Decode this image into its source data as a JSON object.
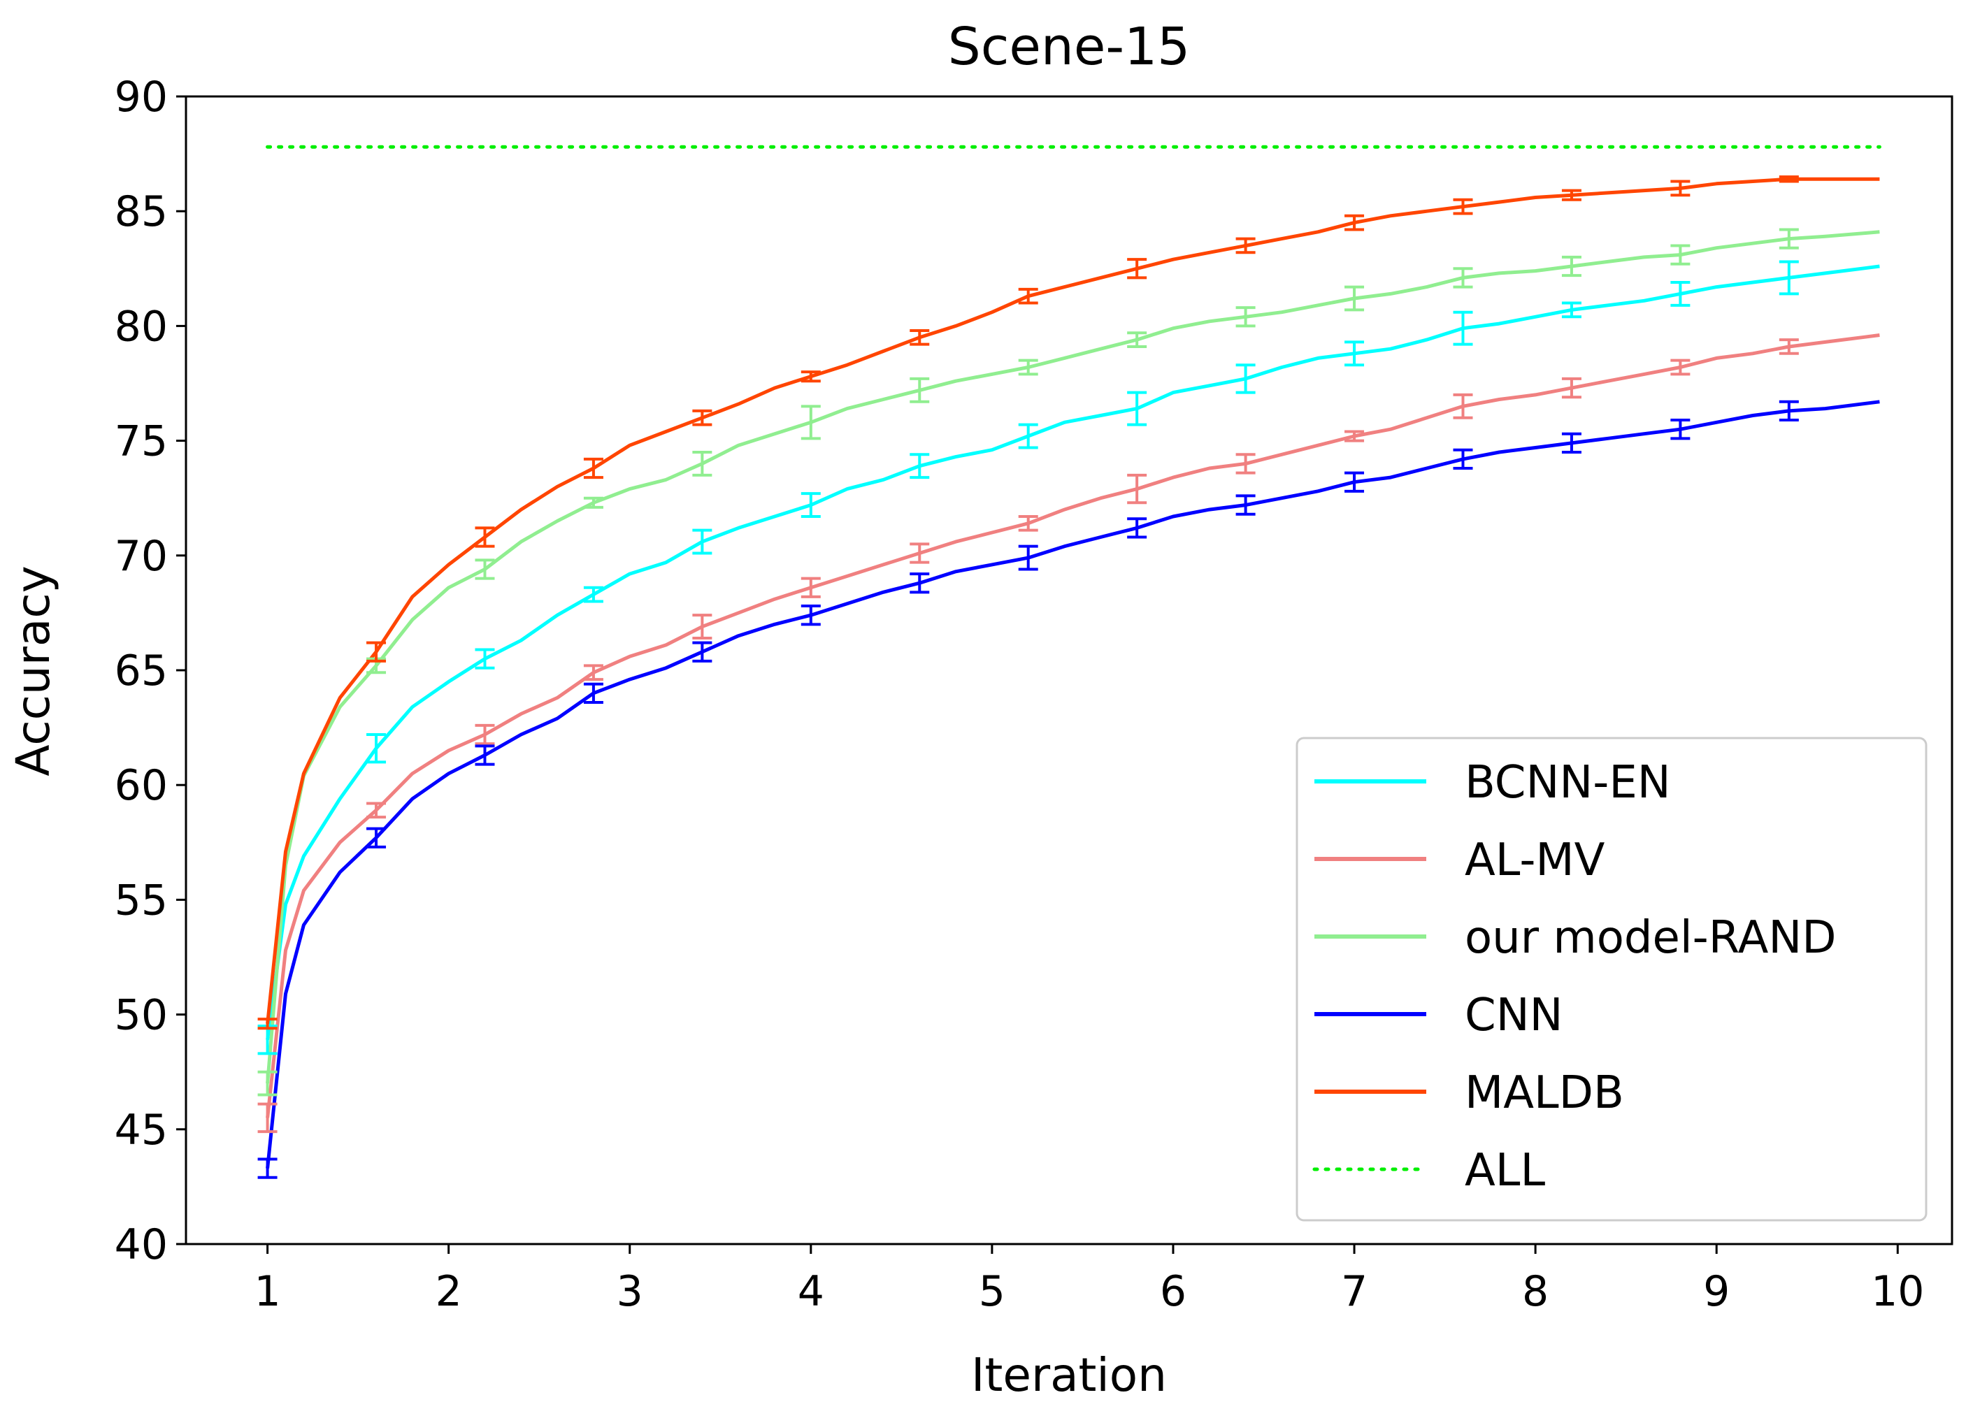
{
  "chart_data": {
    "type": "line",
    "title": "Scene-15",
    "xlabel": "Iteration",
    "ylabel": "Accuracy",
    "xlim": [
      0.55,
      10.3
    ],
    "ylim": [
      40,
      90
    ],
    "xticks": [
      "1",
      "2",
      "3",
      "4",
      "5",
      "6",
      "7",
      "8",
      "9",
      "10"
    ],
    "yticks": [
      "40",
      "45",
      "50",
      "55",
      "60",
      "65",
      "70",
      "75",
      "80",
      "85",
      "90"
    ],
    "grid": false,
    "legend_position": "lower-right",
    "x": [
      1.0,
      1.1,
      1.2,
      1.4,
      1.6,
      1.8,
      2.0,
      2.2,
      2.4,
      2.6,
      2.8,
      3.0,
      3.2,
      3.4,
      3.6,
      3.8,
      4.0,
      4.2,
      4.4,
      4.6,
      4.8,
      5.0,
      5.2,
      5.4,
      5.6,
      5.8,
      6.0,
      6.2,
      6.4,
      6.6,
      6.8,
      7.0,
      7.2,
      7.4,
      7.6,
      7.8,
      8.0,
      8.2,
      8.4,
      8.6,
      8.8,
      9.0,
      9.2,
      9.4,
      9.6,
      9.9
    ],
    "errorbar_x": [
      1.0,
      1.6,
      2.2,
      2.8,
      3.4,
      4.0,
      4.6,
      5.2,
      5.8,
      6.4,
      7.0,
      7.6,
      8.2,
      8.8,
      9.4
    ],
    "series": [
      {
        "name": "BCNN-EN",
        "color": "#00ffff",
        "style": "solid",
        "values": [
          48.9,
          54.8,
          56.9,
          59.4,
          61.6,
          63.4,
          64.5,
          65.5,
          66.3,
          67.4,
          68.3,
          69.2,
          69.7,
          70.6,
          71.2,
          71.7,
          72.2,
          72.9,
          73.3,
          73.9,
          74.3,
          74.6,
          75.2,
          75.8,
          76.1,
          76.4,
          77.1,
          77.4,
          77.7,
          78.2,
          78.6,
          78.8,
          79.0,
          79.4,
          79.9,
          80.1,
          80.4,
          80.7,
          80.9,
          81.1,
          81.4,
          81.7,
          81.9,
          82.1,
          82.3,
          82.6
        ],
        "errors": [
          0.6,
          0.6,
          0.4,
          0.3,
          0.5,
          0.5,
          0.5,
          0.5,
          0.7,
          0.6,
          0.5,
          0.7,
          0.3,
          0.5,
          0.7
        ]
      },
      {
        "name": "AL-MV",
        "color": "#f08080",
        "style": "solid",
        "values": [
          45.5,
          52.8,
          55.4,
          57.5,
          58.9,
          60.5,
          61.5,
          62.2,
          63.1,
          63.8,
          64.9,
          65.6,
          66.1,
          66.9,
          67.5,
          68.1,
          68.6,
          69.1,
          69.6,
          70.1,
          70.6,
          71.0,
          71.4,
          72.0,
          72.5,
          72.9,
          73.4,
          73.8,
          74.0,
          74.4,
          74.8,
          75.2,
          75.5,
          76.0,
          76.5,
          76.8,
          77.0,
          77.3,
          77.6,
          77.9,
          78.2,
          78.6,
          78.8,
          79.1,
          79.3,
          79.6
        ],
        "errors": [
          0.6,
          0.3,
          0.4,
          0.3,
          0.5,
          0.4,
          0.4,
          0.3,
          0.6,
          0.4,
          0.2,
          0.5,
          0.4,
          0.3,
          0.3
        ]
      },
      {
        "name": "our model-RAND",
        "color": "#90ee90",
        "style": "solid",
        "values": [
          47.0,
          56.5,
          60.4,
          63.4,
          65.2,
          67.2,
          68.6,
          69.4,
          70.6,
          71.5,
          72.3,
          72.9,
          73.3,
          74.0,
          74.8,
          75.3,
          75.8,
          76.4,
          76.8,
          77.2,
          77.6,
          77.9,
          78.2,
          78.6,
          79.0,
          79.4,
          79.9,
          80.2,
          80.4,
          80.6,
          80.9,
          81.2,
          81.4,
          81.7,
          82.1,
          82.3,
          82.4,
          82.6,
          82.8,
          83.0,
          83.1,
          83.4,
          83.6,
          83.8,
          83.9,
          84.1
        ],
        "errors": [
          0.5,
          0.3,
          0.4,
          0.2,
          0.5,
          0.7,
          0.5,
          0.3,
          0.3,
          0.4,
          0.5,
          0.4,
          0.4,
          0.4,
          0.4
        ]
      },
      {
        "name": "CNN",
        "color": "#0000ff",
        "style": "solid",
        "values": [
          43.3,
          50.9,
          53.9,
          56.2,
          57.7,
          59.4,
          60.5,
          61.3,
          62.2,
          62.9,
          64.0,
          64.6,
          65.1,
          65.8,
          66.5,
          67.0,
          67.4,
          67.9,
          68.4,
          68.8,
          69.3,
          69.6,
          69.9,
          70.4,
          70.8,
          71.2,
          71.7,
          72.0,
          72.2,
          72.5,
          72.8,
          73.2,
          73.4,
          73.8,
          74.2,
          74.5,
          74.7,
          74.9,
          75.1,
          75.3,
          75.5,
          75.8,
          76.1,
          76.3,
          76.4,
          76.7
        ],
        "errors": [
          0.4,
          0.4,
          0.4,
          0.4,
          0.4,
          0.4,
          0.4,
          0.5,
          0.4,
          0.4,
          0.4,
          0.4,
          0.4,
          0.4,
          0.4
        ]
      },
      {
        "name": "MALDB",
        "color": "#ff4500",
        "style": "solid",
        "values": [
          49.6,
          57.1,
          60.5,
          63.8,
          65.8,
          68.2,
          69.6,
          70.8,
          72.0,
          73.0,
          73.8,
          74.8,
          75.4,
          76.0,
          76.6,
          77.3,
          77.8,
          78.3,
          78.9,
          79.5,
          80.0,
          80.6,
          81.3,
          81.7,
          82.1,
          82.5,
          82.9,
          83.2,
          83.5,
          83.8,
          84.1,
          84.5,
          84.8,
          85.0,
          85.2,
          85.4,
          85.6,
          85.7,
          85.8,
          85.9,
          86.0,
          86.2,
          86.3,
          86.4,
          86.4,
          86.4
        ],
        "errors": [
          0.2,
          0.4,
          0.4,
          0.4,
          0.3,
          0.2,
          0.3,
          0.3,
          0.4,
          0.3,
          0.3,
          0.3,
          0.2,
          0.3,
          0.1
        ]
      },
      {
        "name": "ALL",
        "color": "#00ee00",
        "style": "dotted",
        "x": [
          1.0,
          9.9
        ],
        "values": [
          87.8,
          87.8
        ]
      }
    ]
  }
}
